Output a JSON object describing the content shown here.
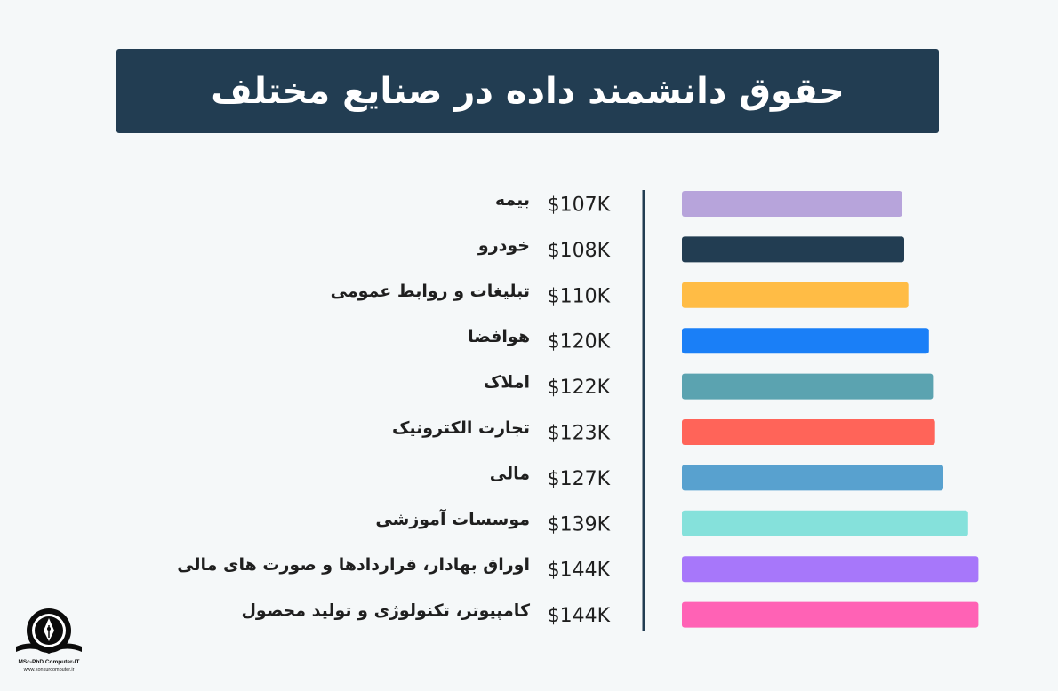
{
  "chart_data": {
    "type": "bar",
    "title": "حقوق دانشمند داده در صنایع مختلف",
    "value_unit": "K USD",
    "xlim": [
      0,
      160
    ],
    "categories": [
      "بیمه",
      "خودرو",
      "تبلیغات و روابط عمومی",
      "هوافضا",
      "املاک",
      "تجارت الکترونیک",
      "مالی",
      "موسسات آموزشی",
      "اوراق بهادار، قراردادها و صورت های مالی",
      "کامپیوتر، تکنولوژی و تولید محصول"
    ],
    "values": [
      107,
      108,
      110,
      120,
      122,
      123,
      127,
      139,
      144,
      144
    ],
    "value_labels": [
      "$107K",
      "$108K",
      "$110K",
      "$120K",
      "$122K",
      "$123K",
      "$127K",
      "$139K",
      "$144K",
      "$144K"
    ],
    "bar_colors": [
      "#b7a4db",
      "#223d52",
      "#ffbc45",
      "#1a7ff7",
      "#5ba3b0",
      "#ff6459",
      "#58a1cf",
      "#85e1db",
      "#a777fa",
      "#ff62b5"
    ],
    "axis_color": "#223d52"
  },
  "logo": {
    "line1": "MSc-PhD Computer-IT",
    "line2": "www.konkurcomputer.ir",
    "icon": "pen-book-icon"
  }
}
